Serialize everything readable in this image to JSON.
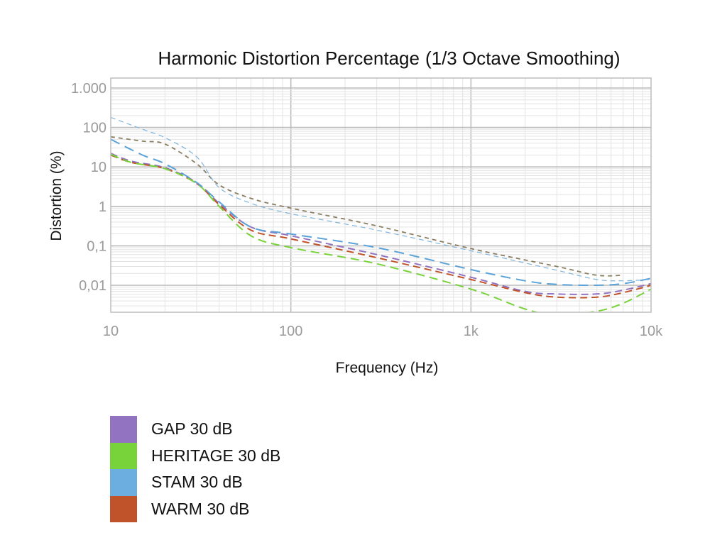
{
  "chart_data": {
    "type": "line",
    "title": "Harmonic Distortion Percentage",
    "subtitle": "(1/3 Octave Smoothing)",
    "xlabel": "Frequency (Hz)",
    "ylabel": "Distortion (%)",
    "xscale": "log",
    "yscale": "log",
    "xlim": [
      10,
      10000
    ],
    "ylim": [
      0.002,
      1000
    ],
    "x_ticks": [
      {
        "value": 10,
        "label": "10"
      },
      {
        "value": 100,
        "label": "100"
      },
      {
        "value": 1000,
        "label": "1k"
      },
      {
        "value": 10000,
        "label": "10k"
      }
    ],
    "y_ticks": [
      {
        "value": 1000,
        "label": "1.000"
      },
      {
        "value": 100,
        "label": "100"
      },
      {
        "value": 10,
        "label": "10"
      },
      {
        "value": 1,
        "label": "1"
      },
      {
        "value": 0.1,
        "label": "0,1"
      },
      {
        "value": 0.01,
        "label": "0,01"
      }
    ],
    "grid": true,
    "legend_position": "bottom-left",
    "series": [
      {
        "name": "GAP 30 dB",
        "color": "#9173c1",
        "dash": "10,6",
        "width": 2,
        "points": [
          [
            10,
            22
          ],
          [
            13,
            14
          ],
          [
            20,
            9.5
          ],
          [
            30,
            4
          ],
          [
            40,
            1.2
          ],
          [
            60,
            0.3
          ],
          [
            100,
            0.18
          ],
          [
            300,
            0.06
          ],
          [
            1000,
            0.016
          ],
          [
            2000,
            0.007
          ],
          [
            3000,
            0.006
          ],
          [
            5000,
            0.006
          ],
          [
            7000,
            0.0075
          ],
          [
            10000,
            0.011
          ]
        ]
      },
      {
        "name": "WARM 30 dB",
        "color": "#c0532a",
        "dash": "10,6",
        "width": 2,
        "points": [
          [
            10,
            20
          ],
          [
            13,
            13
          ],
          [
            20,
            9
          ],
          [
            30,
            3.8
          ],
          [
            40,
            1.1
          ],
          [
            60,
            0.25
          ],
          [
            100,
            0.15
          ],
          [
            300,
            0.05
          ],
          [
            1000,
            0.014
          ],
          [
            2000,
            0.0065
          ],
          [
            3000,
            0.005
          ],
          [
            5000,
            0.005
          ],
          [
            7000,
            0.0065
          ],
          [
            10000,
            0.01
          ]
        ]
      },
      {
        "name": "HERITAGE 30 dB",
        "color": "#78d23a",
        "dash": "12,7",
        "width": 2,
        "points": [
          [
            10,
            21
          ],
          [
            13,
            13
          ],
          [
            20,
            9
          ],
          [
            30,
            3.8
          ],
          [
            40,
            1
          ],
          [
            60,
            0.18
          ],
          [
            100,
            0.09
          ],
          [
            300,
            0.035
          ],
          [
            1000,
            0.008
          ],
          [
            2000,
            0.0025
          ],
          [
            3000,
            0.0018
          ],
          [
            5000,
            0.0022
          ],
          [
            7000,
            0.0035
          ],
          [
            10000,
            0.008
          ]
        ]
      },
      {
        "name": "STAM 30 dB",
        "color": "#5aa2d8",
        "dash": "14,8",
        "width": 2,
        "points": [
          [
            10,
            50
          ],
          [
            15,
            20
          ],
          [
            20,
            12
          ],
          [
            30,
            4
          ],
          [
            40,
            1.3
          ],
          [
            60,
            0.3
          ],
          [
            100,
            0.2
          ],
          [
            300,
            0.09
          ],
          [
            1000,
            0.025
          ],
          [
            2000,
            0.013
          ],
          [
            3000,
            0.0105
          ],
          [
            5000,
            0.01
          ],
          [
            7000,
            0.011
          ],
          [
            10000,
            0.015
          ]
        ]
      },
      {
        "name": "",
        "color": "#8a7d62",
        "dash": "6,5",
        "width": 1.8,
        "points": [
          [
            10,
            58
          ],
          [
            15,
            45
          ],
          [
            20,
            38
          ],
          [
            30,
            12
          ],
          [
            40,
            3.5
          ],
          [
            60,
            1.6
          ],
          [
            100,
            0.9
          ],
          [
            300,
            0.32
          ],
          [
            1000,
            0.085
          ],
          [
            3000,
            0.03
          ],
          [
            5000,
            0.018
          ],
          [
            7000,
            0.018
          ]
        ]
      },
      {
        "name": "",
        "color": "#7fb4dc",
        "dash": "7,5",
        "width": 1.2,
        "points": [
          [
            10,
            180
          ],
          [
            15,
            90
          ],
          [
            20,
            55
          ],
          [
            30,
            18
          ],
          [
            40,
            3
          ],
          [
            60,
            1.2
          ],
          [
            100,
            0.65
          ],
          [
            300,
            0.25
          ],
          [
            1000,
            0.075
          ],
          [
            3000,
            0.024
          ],
          [
            5000,
            0.014
          ],
          [
            7000,
            0.013
          ],
          [
            10000,
            0.014
          ]
        ]
      }
    ]
  },
  "legend": {
    "items": [
      {
        "label": "GAP 30 dB",
        "color": "#9173c1"
      },
      {
        "label": "HERITAGE 30 dB",
        "color": "#78d23a"
      },
      {
        "label": "STAM 30 dB",
        "color": "#6caee0"
      },
      {
        "label": "WARM 30 dB",
        "color": "#c0532a"
      }
    ]
  }
}
